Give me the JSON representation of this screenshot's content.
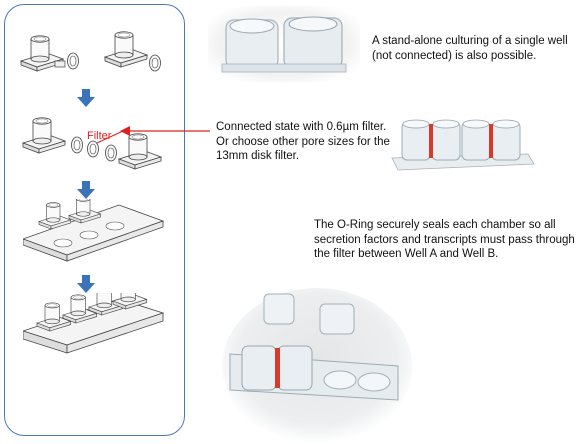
{
  "diagram": {
    "filter_label": "Filter",
    "accent_color": "#e02020",
    "arrow_color": "#3b73b9",
    "panel_border_color": "#4a78b5"
  },
  "captions": {
    "standalone": "A stand-alone culturing of a single well (not connected) is also possible.",
    "connected": "Connected state with 0.6µm filter. Or choose other pore sizes for the 13mm disk filter.",
    "oring": "The O-Ring securely seals each chamber so all secretion factors and transcripts must pass through the filter between Well A and Well B."
  },
  "photos": [
    {
      "name": "standalone-wells-photo"
    },
    {
      "name": "connected-wells-photo"
    },
    {
      "name": "assembled-device-photo"
    }
  ]
}
